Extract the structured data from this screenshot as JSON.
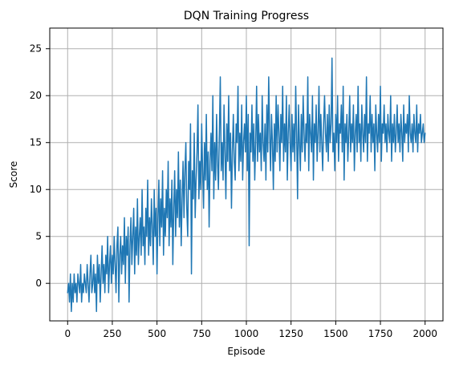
{
  "chart_data": {
    "type": "line",
    "title": "DQN Training Progress",
    "xlabel": "Episode",
    "ylabel": "Score",
    "xlim": [
      -100,
      2100
    ],
    "ylim": [
      -4,
      27.2
    ],
    "x_ticks": [
      0,
      250,
      500,
      750,
      1000,
      1250,
      1500,
      1750,
      2000
    ],
    "y_ticks": [
      0,
      5,
      10,
      15,
      20,
      25
    ],
    "grid": true,
    "line_color": "#1f77b4",
    "series": [
      {
        "values": [
          -1,
          0,
          -2,
          1,
          -3,
          0,
          -2,
          1,
          -1,
          0,
          -2,
          1,
          0,
          -1,
          2,
          -2,
          0,
          -1,
          1,
          0,
          -1,
          2,
          0,
          -2,
          1,
          3,
          -1,
          0,
          2,
          -1,
          1,
          -3,
          3,
          0,
          2,
          -2,
          1,
          4,
          0,
          2,
          -1,
          3,
          1,
          5,
          -1,
          2,
          4,
          0,
          3,
          1,
          5,
          2,
          -1,
          4,
          6,
          -2,
          3,
          5,
          1,
          4,
          2,
          7,
          0,
          5,
          3,
          6,
          -2,
          4,
          7,
          2,
          5,
          8,
          1,
          6,
          3,
          9,
          2,
          5,
          7,
          3,
          10,
          4,
          6,
          2,
          8,
          5,
          11,
          3,
          7,
          4,
          9,
          6,
          2,
          10,
          5,
          8,
          1,
          7,
          11,
          4,
          9,
          6,
          12,
          3,
          8,
          5,
          10,
          7,
          13,
          4,
          9,
          6,
          11,
          2,
          8,
          12,
          5,
          10,
          7,
          14,
          6,
          11,
          4,
          9,
          13,
          7,
          12,
          15,
          8,
          5,
          13,
          10,
          17,
          1,
          12,
          9,
          16,
          7,
          11,
          14,
          19,
          9,
          13,
          10,
          17,
          12,
          8,
          15,
          11,
          18,
          10,
          14,
          6,
          13,
          16,
          12,
          20,
          9,
          15,
          11,
          18,
          13,
          10,
          16,
          22,
          12,
          15,
          11,
          19,
          14,
          9,
          17,
          13,
          20,
          12,
          16,
          8,
          14,
          18,
          13,
          11,
          17,
          15,
          21,
          12,
          16,
          13,
          19,
          11,
          15,
          17,
          14,
          20,
          12,
          18,
          4,
          16,
          14,
          19,
          13,
          17,
          11,
          15,
          21,
          13,
          18,
          14,
          16,
          12,
          20,
          15,
          13,
          17,
          11,
          19,
          14,
          22,
          16,
          12,
          18,
          15,
          10,
          17,
          13,
          20,
          14,
          19,
          16,
          12,
          18,
          15,
          21,
          13,
          17,
          14,
          20,
          11,
          16,
          19,
          15,
          12,
          18,
          14,
          17,
          13,
          21,
          16,
          9,
          19,
          15,
          12,
          18,
          14,
          20,
          16,
          13,
          17,
          15,
          22,
          12,
          18,
          16,
          14,
          20,
          11,
          17,
          15,
          19,
          13,
          16,
          21,
          14,
          18,
          15,
          12,
          17,
          20,
          16,
          14,
          18,
          13,
          19,
          15,
          17,
          24,
          14,
          16,
          12,
          18,
          15,
          20,
          13,
          17,
          16,
          19,
          14,
          21,
          11,
          17,
          15,
          18,
          13,
          16,
          20,
          14,
          17,
          15,
          19,
          12,
          16,
          18,
          14,
          21,
          15,
          17,
          13,
          19,
          16,
          14,
          18,
          15,
          22,
          13,
          17,
          16,
          20,
          14,
          18,
          15,
          17,
          12,
          19,
          16,
          14,
          18,
          15,
          21,
          13,
          17,
          16,
          19,
          15,
          17,
          14,
          18,
          16,
          15,
          20,
          13,
          17,
          15,
          18,
          14,
          16,
          19,
          15,
          17,
          14,
          18,
          16,
          13,
          19,
          15,
          17,
          16,
          18,
          14,
          20,
          16,
          15,
          17,
          14,
          18,
          16,
          15,
          19,
          14,
          17,
          16,
          18,
          15,
          16,
          17,
          15,
          16
        ],
        "note_removed": true
      }
    ]
  }
}
